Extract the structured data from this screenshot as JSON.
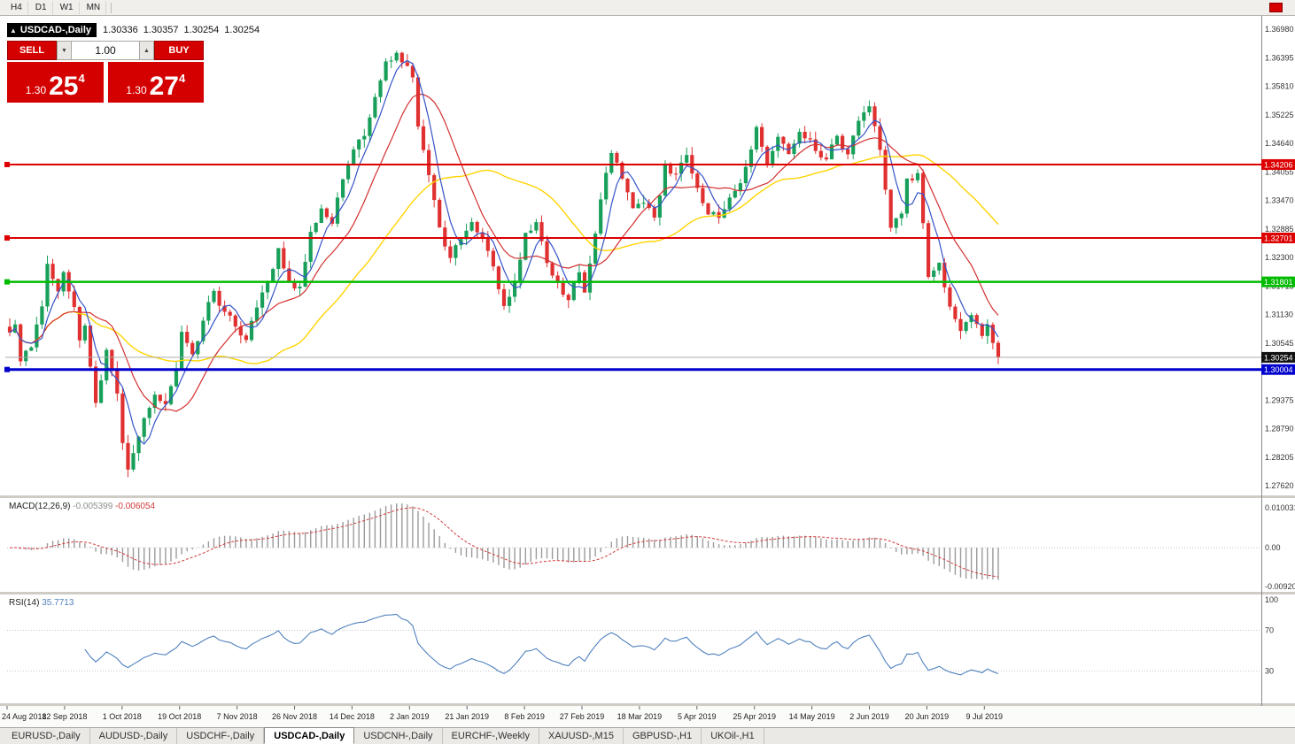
{
  "toolbar": {
    "periods": [
      "H4",
      "D1",
      "W1",
      "MN"
    ]
  },
  "symbol_header": {
    "toggle_icon": "▲",
    "symbol": "USDCAD-,Daily",
    "ohlc": [
      "1.30336",
      "1.30357",
      "1.30254",
      "1.30254"
    ]
  },
  "trade_panel": {
    "sell_label": "SELL",
    "buy_label": "BUY",
    "volume": "1.00",
    "spin_down_icon": "▼",
    "spin_up_icon": "▲",
    "sell_price": {
      "prefix": "1.30",
      "main": "25",
      "sup": "4"
    },
    "buy_price": {
      "prefix": "1.30",
      "main": "27",
      "sup": "4"
    }
  },
  "chart_data": {
    "type": "candlestick",
    "symbol": "USDCAD-,Daily",
    "candle_count": 185,
    "up_color": "#18a05a",
    "down_color": "#e03030",
    "ma_colors": {
      "fast": "#3553c8",
      "mid": "#d32f2f",
      "slow": "#ffd400"
    },
    "price_anchors": [
      [
        0,
        1.3075
      ],
      [
        1,
        1.3095
      ],
      [
        2,
        1.302
      ],
      [
        4,
        1.3045
      ],
      [
        6,
        1.313
      ],
      [
        7,
        1.3215
      ],
      [
        9,
        1.316
      ],
      [
        10,
        1.32
      ],
      [
        12,
        1.313
      ],
      [
        13,
        1.306
      ],
      [
        14,
        1.309
      ],
      [
        16,
        1.293
      ],
      [
        18,
        1.304
      ],
      [
        20,
        1.295
      ],
      [
        21,
        1.285
      ],
      [
        22,
        1.2795
      ],
      [
        23,
        1.283
      ],
      [
        25,
        1.29
      ],
      [
        27,
        1.295
      ],
      [
        29,
        1.293
      ],
      [
        31,
        1.3
      ],
      [
        32,
        1.308
      ],
      [
        34,
        1.303
      ],
      [
        36,
        1.31
      ],
      [
        38,
        1.316
      ],
      [
        40,
        1.312
      ],
      [
        42,
        1.309
      ],
      [
        44,
        1.306
      ],
      [
        46,
        1.313
      ],
      [
        48,
        1.318
      ],
      [
        50,
        1.325
      ],
      [
        52,
        1.318
      ],
      [
        54,
        1.317
      ],
      [
        56,
        1.328
      ],
      [
        58,
        1.333
      ],
      [
        60,
        1.33
      ],
      [
        62,
        1.339
      ],
      [
        64,
        1.345
      ],
      [
        66,
        1.348
      ],
      [
        68,
        1.356
      ],
      [
        70,
        1.363
      ],
      [
        72,
        1.365
      ],
      [
        74,
        1.362
      ],
      [
        75,
        1.36
      ],
      [
        76,
        1.35
      ],
      [
        78,
        1.34
      ],
      [
        80,
        1.329
      ],
      [
        82,
        1.323
      ],
      [
        84,
        1.327
      ],
      [
        86,
        1.33
      ],
      [
        88,
        1.327
      ],
      [
        90,
        1.321
      ],
      [
        92,
        1.313
      ],
      [
        94,
        1.318
      ],
      [
        96,
        1.328
      ],
      [
        98,
        1.33
      ],
      [
        100,
        1.322
      ],
      [
        102,
        1.318
      ],
      [
        104,
        1.314
      ],
      [
        106,
        1.32
      ],
      [
        107,
        1.316
      ],
      [
        108,
        1.322
      ],
      [
        110,
        1.335
      ],
      [
        112,
        1.3445
      ],
      [
        114,
        1.339
      ],
      [
        116,
        1.333
      ],
      [
        118,
        1.334
      ],
      [
        120,
        1.331
      ],
      [
        122,
        1.342
      ],
      [
        124,
        1.34
      ],
      [
        126,
        1.344
      ],
      [
        128,
        1.337
      ],
      [
        130,
        1.332
      ],
      [
        132,
        1.331
      ],
      [
        134,
        1.335
      ],
      [
        136,
        1.338
      ],
      [
        138,
        1.345
      ],
      [
        139,
        1.35
      ],
      [
        141,
        1.342
      ],
      [
        143,
        1.348
      ],
      [
        145,
        1.344
      ],
      [
        147,
        1.349
      ],
      [
        150,
        1.345
      ],
      [
        152,
        1.343
      ],
      [
        154,
        1.348
      ],
      [
        156,
        1.344
      ],
      [
        158,
        1.351
      ],
      [
        160,
        1.354
      ],
      [
        162,
        1.345
      ],
      [
        164,
        1.329
      ],
      [
        166,
        1.332
      ],
      [
        167,
        1.339
      ],
      [
        169,
        1.34
      ],
      [
        171,
        1.319
      ],
      [
        173,
        1.322
      ],
      [
        175,
        1.313
      ],
      [
        177,
        1.308
      ],
      [
        179,
        1.311
      ],
      [
        181,
        1.307
      ],
      [
        182,
        1.309
      ],
      [
        184,
        1.30254
      ]
    ],
    "y_ticks": [
      {
        "value": 1.3698,
        "label": "1.36980"
      },
      {
        "value": 1.36395,
        "label": "1.36395"
      },
      {
        "value": 1.3581,
        "label": "1.35810"
      },
      {
        "value": 1.35225,
        "label": "1.35225"
      },
      {
        "value": 1.3464,
        "label": "1.34640"
      },
      {
        "value": 1.34055,
        "label": "1.34055"
      },
      {
        "value": 1.3347,
        "label": "1.33470"
      },
      {
        "value": 1.32885,
        "label": "1.32885"
      },
      {
        "value": 1.323,
        "label": "1.32300"
      },
      {
        "value": 1.31715,
        "label": "1.31715"
      },
      {
        "value": 1.3113,
        "label": "1.31130"
      },
      {
        "value": 1.30545,
        "label": "1.30545"
      },
      {
        "value": 1.2996,
        "label": "1.29960"
      },
      {
        "value": 1.29375,
        "label": "1.29375"
      },
      {
        "value": 1.2879,
        "label": "1.28790"
      },
      {
        "value": 1.28205,
        "label": "1.28205"
      },
      {
        "value": 1.2762,
        "label": "1.27620"
      }
    ],
    "x_ticks": [
      "24 Aug 2018",
      "12 Sep 2018",
      "1 Oct 2018",
      "19 Oct 2018",
      "7 Nov 2018",
      "26 Nov 2018",
      "14 Dec 2018",
      "2 Jan 2019",
      "21 Jan 2019",
      "8 Feb 2019",
      "27 Feb 2019",
      "18 Mar 2019",
      "5 Apr 2019",
      "25 Apr 2019",
      "14 May 2019",
      "2 Jun 2019",
      "20 Jun 2019",
      "9 Jul 2019"
    ],
    "lines": [
      {
        "value": 1.34206,
        "label": "1.34206",
        "color": "#dd0000",
        "width": 2
      },
      {
        "value": 1.32701,
        "label": "1.32701",
        "color": "#dd0000",
        "width": 2
      },
      {
        "value": 1.31801,
        "label": "1.31801",
        "color": "#00bb00",
        "width": 2.5
      },
      {
        "value": 1.30004,
        "label": "1.30004",
        "color": "#0000cc",
        "width": 3
      }
    ],
    "current_price": {
      "value": 1.30254,
      "label": "1.30254",
      "color": "#111111"
    },
    "macd": {
      "label": "MACD(12,26,9)",
      "values": [
        "-0.005399",
        "-0.006054"
      ],
      "axis": [
        "0.010031",
        "0.00",
        "-0.00920"
      ],
      "axis_values": [
        0.010031,
        0,
        -0.0092
      ],
      "histogram_color": "#9b9b9b",
      "signal_color": "#d23b3b"
    },
    "rsi": {
      "label": "RSI(14)",
      "value": "35.7713",
      "axis": [
        "100",
        "70",
        "30"
      ],
      "axis_values": [
        100,
        70,
        30
      ],
      "levels": [
        70,
        30
      ],
      "line_color": "#4f81bd"
    }
  },
  "tabs": {
    "items": [
      "EURUSD-,Daily",
      "AUDUSD-,Daily",
      "USDCHF-,Daily",
      "USDCAD-,Daily",
      "USDCNH-,Daily",
      "EURCHF-,Weekly",
      "XAUUSD-,M15",
      "GBPUSD-,H1",
      "UKOil-,H1"
    ],
    "active_index": 3
  }
}
